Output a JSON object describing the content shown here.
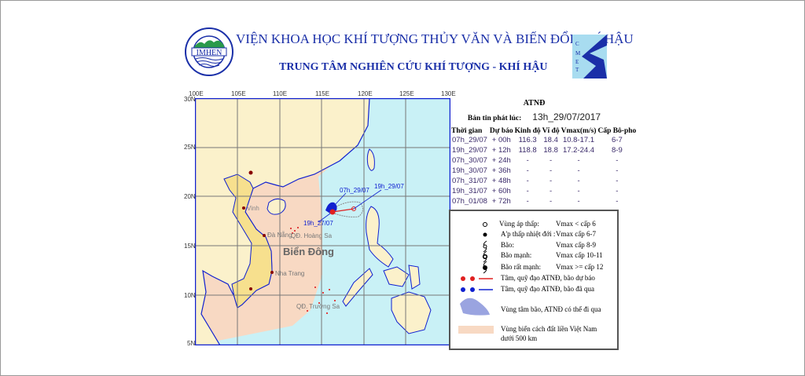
{
  "header": {
    "institute": "VIỆN KHOA HỌC KHÍ TƯỢNG THỦY VĂN VÀ BIẾN ĐỔI KHÍ HẬU",
    "center": "TRUNG TÂM NGHIÊN CỨU KHÍ TƯỢNG - KHÍ HẬU",
    "logo_left": "IMHEN",
    "logo_left_ring": "VIỆN KHOA HỌC KHÍ TƯỢNG THỦY VĂN VÀ BIẾN ĐỔI KHÍ HẬU",
    "logo_right": "CMETC"
  },
  "map": {
    "lon_ticks": [
      "100E",
      "105E",
      "110E",
      "115E",
      "120E",
      "125E",
      "130E"
    ],
    "lat_ticks": [
      "30N",
      "25N",
      "20N",
      "15N",
      "10N",
      "5N"
    ],
    "sea_label": "Biển Đông",
    "places": [
      "Vinh",
      "Đà Nẵng",
      "QĐ. Hoàng Sa",
      "Nha Trang",
      "QĐ. Trường Sa"
    ],
    "track_labels": [
      "07h_29/07",
      "19h_29/07",
      "19h_27/07"
    ],
    "colors": {
      "sea": "#c9f1f6",
      "vietnam": "#f7e08e",
      "land": "#fbf1cb",
      "zone500": "#f8d9c3",
      "past": "#1020d0",
      "forecast": "#e02020"
    }
  },
  "panel": {
    "title": "ATNĐ",
    "issued_label": "Bản tin phát lúc:",
    "issued_value": "13h_29/07/2017",
    "columns": [
      "Thời gian",
      "Dự báo",
      "Kinh độ",
      "Vĩ độ",
      "Vmax(m/s)",
      "Cấp Bô-pho"
    ],
    "rows": [
      [
        "07h_29/07",
        "+ 00h",
        "116.3",
        "18.4",
        "10.8-17.1",
        "6-7"
      ],
      [
        "19h_29/07",
        "+ 12h",
        "118.8",
        "18.8",
        "17.2-24.4",
        "8-9"
      ],
      [
        "07h_30/07",
        "+ 24h",
        "-",
        "-",
        "-",
        "-"
      ],
      [
        "19h_30/07",
        "+ 36h",
        "-",
        "-",
        "-",
        "-"
      ],
      [
        "07h_31/07",
        "+ 48h",
        "-",
        "-",
        "-",
        "-"
      ],
      [
        "19h_31/07",
        "+ 60h",
        "-",
        "-",
        "-",
        "-"
      ],
      [
        "07h_01/08",
        "+ 72h",
        "-",
        "-",
        "-",
        "-"
      ]
    ]
  },
  "legend": {
    "items": [
      {
        "label": "Vùng áp thấp:",
        "value": "Vmax < cấp 6"
      },
      {
        "label": "A'p thấp nhiệt đới :",
        "value": "Vmax cấp 6-7"
      },
      {
        "label": "Bão:",
        "value": "Vmax cấp 8-9"
      },
      {
        "label": "Bão mạnh:",
        "value": "Vmax cấp 10-11"
      },
      {
        "label": "Bão rất mạnh:",
        "value": "Vmax >= cấp 12"
      }
    ],
    "forecast_track": "Tâm, quỹ đạo ATNĐ, bão dự báo",
    "past_track": "Tâm, quỹ đạo ATNĐ, bão đã qua",
    "cone": "Vùng tâm bão, ATNĐ có thể đi qua",
    "zone500_line1": "Vùng biển cách đất liền Việt Nam",
    "zone500_line2": "dưới 500 km"
  }
}
